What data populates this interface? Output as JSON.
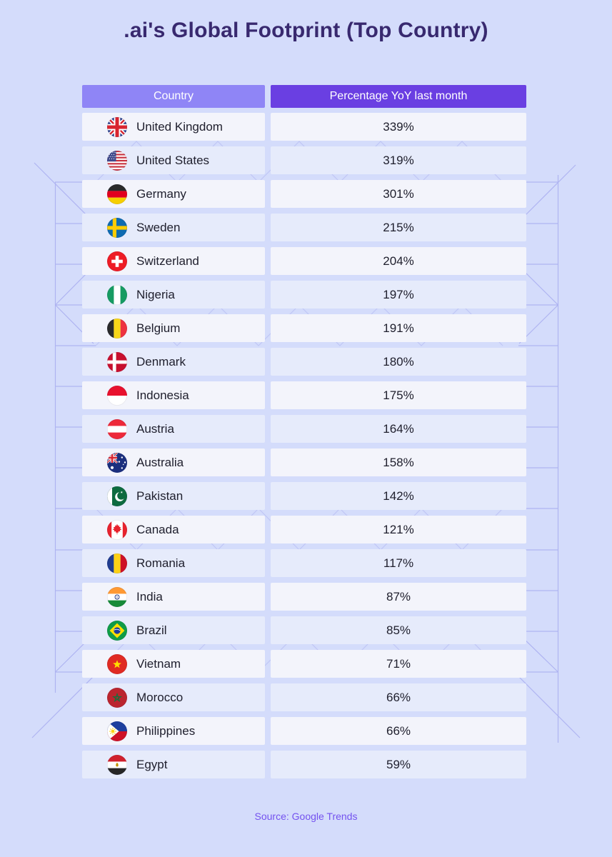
{
  "title": ".ai's Global Footprint (Top Country)",
  "table": {
    "columns": [
      {
        "label": "Country"
      },
      {
        "label": "Percentage YoY last month"
      }
    ],
    "rows": [
      {
        "country": "United Kingdom",
        "flag": "united-kingdom",
        "value": "339%"
      },
      {
        "country": "United States",
        "flag": "united-states",
        "value": "319%"
      },
      {
        "country": "Germany",
        "flag": "germany",
        "value": "301%"
      },
      {
        "country": "Sweden",
        "flag": "sweden",
        "value": "215%"
      },
      {
        "country": "Switzerland",
        "flag": "switzerland",
        "value": "204%"
      },
      {
        "country": "Nigeria",
        "flag": "nigeria",
        "value": "197%"
      },
      {
        "country": "Belgium",
        "flag": "belgium",
        "value": "191%"
      },
      {
        "country": "Denmark",
        "flag": "denmark",
        "value": "180%"
      },
      {
        "country": "Indonesia",
        "flag": "indonesia",
        "value": "175%"
      },
      {
        "country": "Austria",
        "flag": "austria",
        "value": "164%"
      },
      {
        "country": "Australia",
        "flag": "australia",
        "value": "158%"
      },
      {
        "country": "Pakistan",
        "flag": "pakistan",
        "value": "142%"
      },
      {
        "country": "Canada",
        "flag": "canada",
        "value": "121%"
      },
      {
        "country": "Romania",
        "flag": "romania",
        "value": "117%"
      },
      {
        "country": "India",
        "flag": "india",
        "value": "87%"
      },
      {
        "country": "Brazil",
        "flag": "brazil",
        "value": "85%"
      },
      {
        "country": "Vietnam",
        "flag": "vietnam",
        "value": "71%"
      },
      {
        "country": "Morocco",
        "flag": "morocco",
        "value": "66%"
      },
      {
        "country": "Philippines",
        "flag": "philippines",
        "value": "66%"
      },
      {
        "country": "Egypt",
        "flag": "egypt",
        "value": "59%"
      }
    ]
  },
  "footer": {
    "source": "Source: Google Trends"
  },
  "colors": {
    "page_background": "#d4dcfb",
    "country_header": "#8f85f6",
    "value_header": "#6a3fe2",
    "row_light": "#f3f4fb",
    "row_dark": "#e6ebfb",
    "title_text": "#38296f",
    "cell_text": "#20202e",
    "source_text": "#7452ef",
    "pattern_line": "#a9aef0"
  },
  "chart_data": {
    "type": "table",
    "title": ".ai's Global Footprint (Top Country)",
    "columns": [
      "Country",
      "Percentage YoY last month"
    ],
    "categories": [
      "United Kingdom",
      "United States",
      "Germany",
      "Sweden",
      "Switzerland",
      "Nigeria",
      "Belgium",
      "Denmark",
      "Indonesia",
      "Austria",
      "Australia",
      "Pakistan",
      "Canada",
      "Romania",
      "India",
      "Brazil",
      "Vietnam",
      "Morocco",
      "Philippines",
      "Egypt"
    ],
    "values": [
      339,
      319,
      301,
      215,
      204,
      197,
      191,
      180,
      175,
      164,
      158,
      142,
      121,
      117,
      87,
      85,
      71,
      66,
      66,
      59
    ],
    "value_format": "percent YoY last month",
    "source": "Source: Google Trends",
    "layout_hints": {
      "sorted": "descending",
      "row_icons": "country flags",
      "header_colors": [
        "#8f85f6",
        "#6a3fe2"
      ]
    }
  }
}
